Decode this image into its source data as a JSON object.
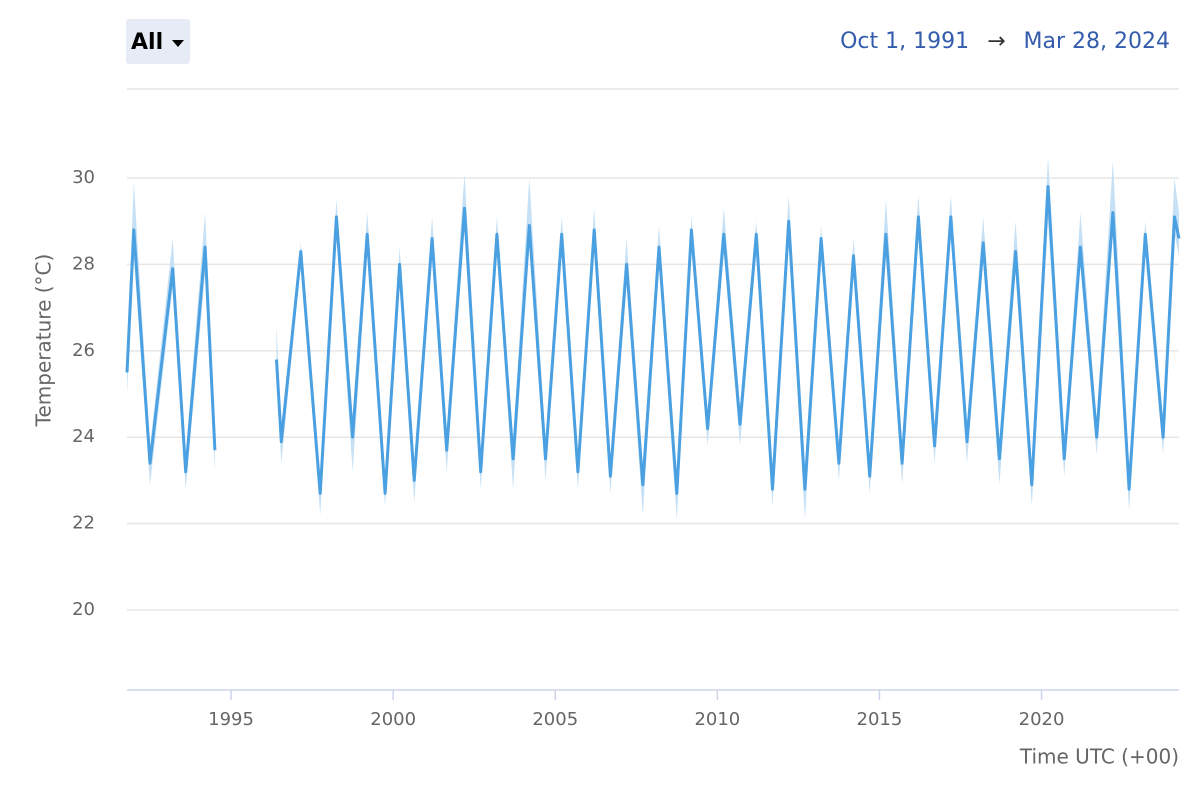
{
  "controls": {
    "period": "All",
    "start": "Oct 1, 1991",
    "separator": "→",
    "end": "Mar 28, 2024"
  },
  "chart_data": {
    "type": "line",
    "y_label": "Temperature (°C)",
    "x_label": "Time UTC (+00)",
    "color": "#4aa0e0",
    "band_color": "#c6e0f5",
    "grid": true,
    "xlim": [
      1991.79,
      2024.24
    ],
    "ylim": [
      18.15,
      32.06
    ],
    "xticks": [
      1995,
      2000,
      2005,
      2010,
      2015,
      2020
    ],
    "yticks": [
      20,
      22,
      24,
      26,
      28,
      30
    ],
    "x": [
      1991.79,
      1992.0,
      1992.5,
      1993.2,
      1993.6,
      1994.2,
      1994.5,
      1995.4,
      1996.4,
      1996.55,
      1997.15,
      1997.75,
      1998.25,
      1998.75,
      1999.2,
      1999.75,
      2000.2,
      2000.65,
      2001.2,
      2001.65,
      2002.2,
      2002.7,
      2003.2,
      2003.7,
      2004.2,
      2004.7,
      2005.2,
      2005.7,
      2006.2,
      2006.7,
      2007.2,
      2007.7,
      2008.2,
      2008.75,
      2009.2,
      2009.7,
      2010.2,
      2010.7,
      2011.2,
      2011.7,
      2012.2,
      2012.7,
      2013.2,
      2013.75,
      2014.2,
      2014.7,
      2015.2,
      2015.7,
      2016.2,
      2016.7,
      2017.2,
      2017.7,
      2018.2,
      2018.7,
      2019.2,
      2019.7,
      2020.2,
      2020.7,
      2021.2,
      2021.7,
      2022.2,
      2022.7,
      2023.2,
      2023.75,
      2024.1,
      2024.24
    ],
    "values": [
      25.5,
      28.8,
      23.4,
      27.9,
      23.2,
      28.4,
      23.7,
      null,
      25.8,
      23.9,
      28.3,
      22.7,
      29.1,
      24.0,
      28.7,
      22.7,
      28.0,
      23.0,
      28.6,
      23.7,
      29.3,
      23.2,
      28.7,
      23.5,
      28.9,
      23.5,
      28.7,
      23.2,
      28.8,
      23.1,
      28.0,
      22.9,
      28.4,
      22.7,
      28.8,
      24.2,
      28.7,
      24.3,
      28.7,
      22.8,
      29.0,
      22.8,
      28.6,
      23.4,
      28.2,
      23.1,
      28.7,
      23.4,
      29.1,
      23.8,
      29.1,
      23.9,
      28.5,
      23.5,
      28.3,
      22.9,
      29.8,
      23.5,
      28.4,
      24.0,
      29.2,
      22.8,
      28.7,
      24.0,
      29.1,
      28.6
    ],
    "upper": [
      25.9,
      29.9,
      23.8,
      28.6,
      23.6,
      29.2,
      24.1,
      null,
      26.6,
      24.3,
      28.5,
      23.1,
      29.5,
      24.4,
      29.2,
      23.1,
      28.4,
      23.4,
      29.1,
      24.1,
      30.1,
      23.6,
      29.1,
      23.9,
      30.0,
      23.9,
      29.1,
      23.6,
      29.3,
      23.5,
      28.6,
      23.3,
      28.9,
      23.1,
      29.1,
      24.6,
      29.3,
      24.7,
      29.0,
      23.2,
      29.6,
      23.2,
      28.9,
      23.8,
      28.6,
      23.5,
      29.5,
      23.8,
      29.6,
      24.2,
      29.6,
      24.3,
      29.1,
      23.9,
      29.0,
      23.3,
      30.5,
      23.9,
      29.2,
      24.4,
      30.4,
      23.2,
      29.0,
      24.4,
      30.0,
      29.2
    ],
    "lower": [
      25.0,
      28.2,
      22.9,
      27.5,
      22.8,
      27.8,
      23.2,
      null,
      25.4,
      23.4,
      28.0,
      22.2,
      28.7,
      23.2,
      28.3,
      22.4,
      27.6,
      22.5,
      28.2,
      23.2,
      28.9,
      22.8,
      28.3,
      22.8,
      28.5,
      23.0,
      28.3,
      22.8,
      28.4,
      22.7,
      27.6,
      22.2,
      28.0,
      22.1,
      28.4,
      23.8,
      28.3,
      23.8,
      28.3,
      22.4,
      28.6,
      22.1,
      28.2,
      23.0,
      27.8,
      22.7,
      28.3,
      22.9,
      28.7,
      23.4,
      28.7,
      23.4,
      28.1,
      22.9,
      27.9,
      22.4,
      29.0,
      23.1,
      28.0,
      23.6,
      28.8,
      22.3,
      28.2,
      23.6,
      28.7,
      28.2
    ]
  }
}
